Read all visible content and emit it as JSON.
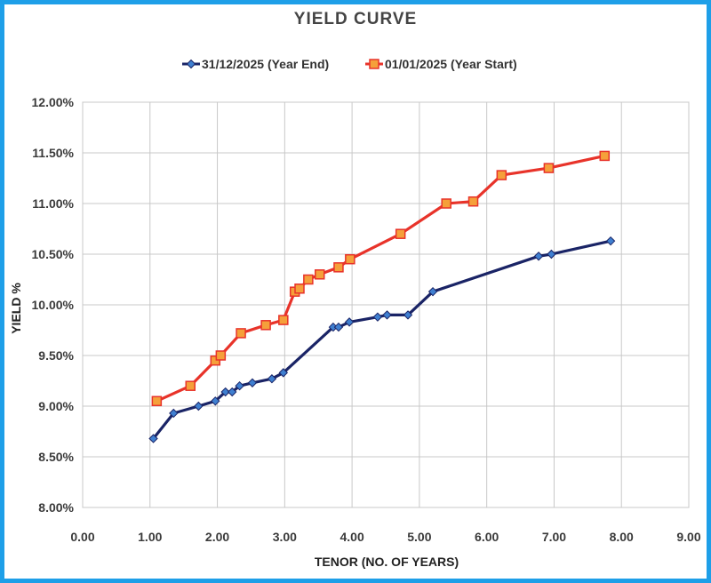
{
  "chart_data": {
    "type": "line",
    "title": "YIELD CURVE",
    "xlabel": "TENOR (NO. OF YEARS)",
    "ylabel": "YIELD %",
    "xlim": [
      0,
      9
    ],
    "ylim": [
      8.0,
      12.0
    ],
    "x_ticks": [
      "0.00",
      "1.00",
      "2.00",
      "3.00",
      "4.00",
      "5.00",
      "6.00",
      "7.00",
      "8.00",
      "9.00"
    ],
    "y_ticks": [
      "8.00%",
      "8.50%",
      "9.00%",
      "9.50%",
      "10.00%",
      "10.50%",
      "11.00%",
      "11.50%",
      "12.00%"
    ],
    "grid": true,
    "legend_position": "top",
    "series": [
      {
        "name": "31/12/2025 (Year End)",
        "color": "#1a2466",
        "marker": "diamond",
        "x": [
          1.05,
          1.35,
          1.72,
          1.97,
          2.12,
          2.22,
          2.33,
          2.52,
          2.81,
          2.98,
          3.72,
          3.8,
          3.96,
          4.38,
          4.52,
          4.83,
          5.2,
          6.77,
          6.96,
          7.84
        ],
        "y": [
          8.68,
          8.93,
          9.0,
          9.05,
          9.14,
          9.14,
          9.2,
          9.23,
          9.27,
          9.33,
          9.78,
          9.78,
          9.83,
          9.88,
          9.9,
          9.9,
          10.13,
          10.48,
          10.5,
          10.63
        ]
      },
      {
        "name": "01/01/2025 (Year Start)",
        "color": "#e8332a",
        "marker": "square",
        "x": [
          1.1,
          1.6,
          1.97,
          2.05,
          2.35,
          2.72,
          2.98,
          3.15,
          3.22,
          3.35,
          3.52,
          3.8,
          3.97,
          4.72,
          5.4,
          5.8,
          6.22,
          6.92,
          7.75
        ],
        "y": [
          9.05,
          9.2,
          9.45,
          9.5,
          9.72,
          9.8,
          9.85,
          10.13,
          10.16,
          10.25,
          10.3,
          10.37,
          10.45,
          10.7,
          11.0,
          11.02,
          11.28,
          11.35,
          11.47
        ]
      }
    ]
  }
}
